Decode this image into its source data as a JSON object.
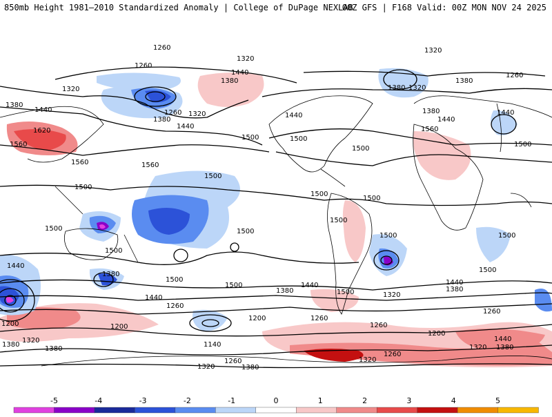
{
  "header": {
    "left": "850mb Height 1981–2010 Standardized Anomaly | College of DuPage NEXLAB",
    "right": "00Z GFS | F168 Valid: 00Z MON NOV 24 2025"
  },
  "contour_labels": [
    "1260",
    "1320",
    "1440",
    "1380",
    "1500",
    "1560",
    "1620",
    "1200",
    "1140"
  ],
  "colorbar": {
    "ticks": [
      "-5",
      "-4",
      "-3",
      "-2",
      "-1",
      "0",
      "1",
      "2",
      "3",
      "4",
      "5"
    ],
    "colors": [
      "#e040e0",
      "#8a00c8",
      "#1a2a9a",
      "#2c52d8",
      "#5a8cf0",
      "#bcd6f8",
      "#ffffff",
      "#f8c8c8",
      "#f08a8a",
      "#e84a4a",
      "#c41010",
      "#f08c00",
      "#f8b800"
    ]
  },
  "map": {
    "land_color": "#ffffff",
    "border_color": "#000000",
    "contour_color": "#000000"
  }
}
